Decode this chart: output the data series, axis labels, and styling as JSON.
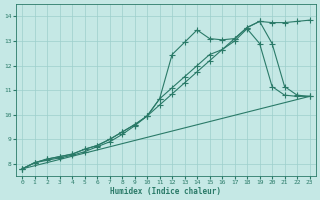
{
  "bg_color": "#c5e8e5",
  "grid_color": "#9dcfcc",
  "line_color": "#2a7a68",
  "xlabel": "Humidex (Indice chaleur)",
  "xlim": [
    -0.5,
    23.5
  ],
  "ylim": [
    7.5,
    14.5
  ],
  "xticks": [
    0,
    1,
    2,
    3,
    4,
    5,
    6,
    7,
    8,
    9,
    10,
    11,
    12,
    13,
    14,
    15,
    16,
    17,
    18,
    19,
    20,
    21,
    22,
    23
  ],
  "yticks": [
    8,
    9,
    10,
    11,
    12,
    13,
    14
  ],
  "line1_x": [
    0,
    1,
    2,
    3,
    4,
    5,
    6,
    7,
    8,
    9,
    10,
    11,
    12,
    13,
    14,
    15,
    16,
    17,
    18,
    19,
    20,
    21,
    22,
    23
  ],
  "line1_y": [
    7.8,
    8.05,
    8.15,
    8.25,
    8.35,
    8.5,
    8.7,
    8.9,
    9.2,
    9.55,
    9.95,
    10.4,
    10.85,
    11.3,
    11.75,
    12.2,
    12.65,
    13.1,
    13.55,
    13.8,
    13.75,
    13.75,
    13.8,
    13.85
  ],
  "line2_x": [
    0,
    1,
    2,
    3,
    4,
    5,
    6,
    7,
    8,
    9,
    10,
    11,
    12,
    13,
    14,
    15,
    16,
    17,
    18,
    19,
    20,
    21,
    22,
    23
  ],
  "line2_y": [
    7.8,
    8.05,
    8.2,
    8.3,
    8.4,
    8.6,
    8.75,
    9.0,
    9.3,
    9.6,
    9.95,
    10.65,
    12.45,
    12.95,
    13.45,
    13.1,
    13.05,
    13.1,
    13.55,
    13.8,
    12.9,
    11.15,
    10.8,
    10.75
  ],
  "line3_x": [
    0,
    1,
    2,
    3,
    4,
    5,
    6,
    7,
    8,
    9,
    10,
    11,
    12,
    13,
    14,
    15,
    16,
    17,
    18,
    19,
    20,
    21,
    22,
    23
  ],
  "line3_y": [
    7.8,
    8.05,
    8.2,
    8.3,
    8.4,
    8.6,
    8.75,
    9.0,
    9.3,
    9.6,
    9.95,
    10.65,
    11.1,
    11.55,
    12.0,
    12.45,
    12.65,
    13.0,
    13.5,
    12.9,
    11.15,
    10.8,
    10.75,
    10.75
  ],
  "line4_x": [
    0,
    23
  ],
  "line4_y": [
    7.8,
    10.75
  ],
  "marker_size": 2.5,
  "linewidth": 0.8
}
